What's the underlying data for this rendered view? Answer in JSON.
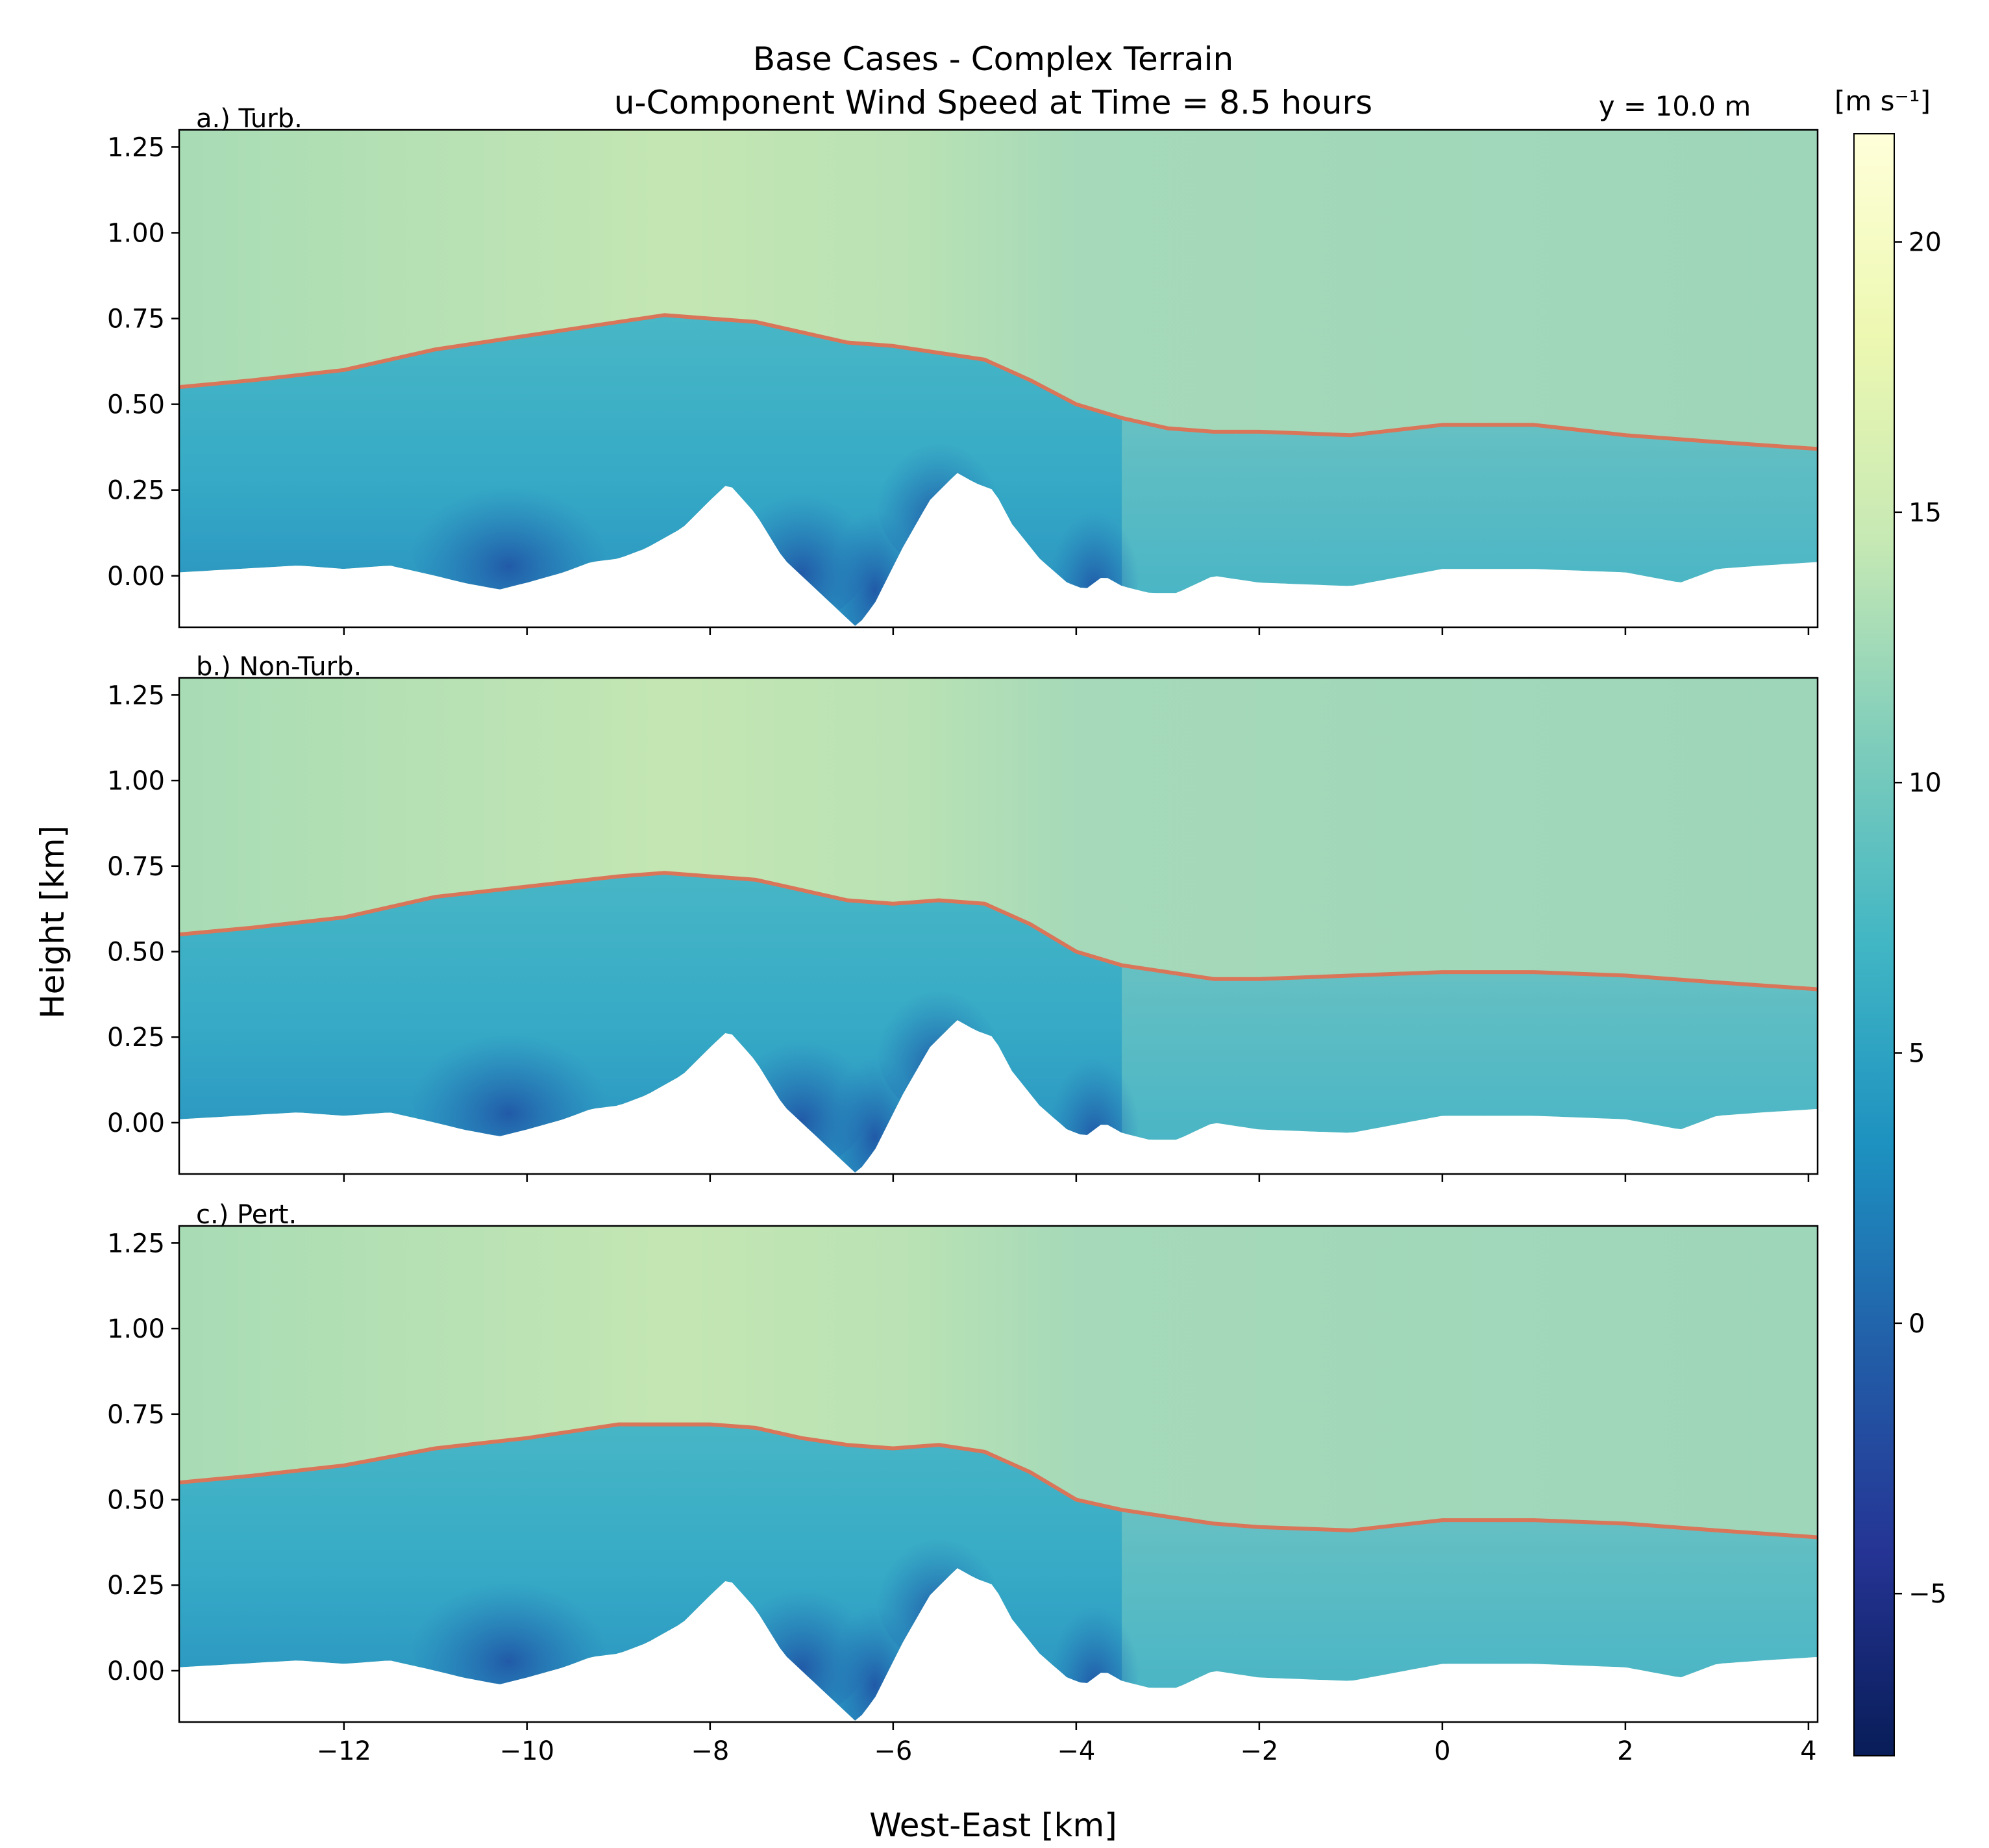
{
  "chart_data": {
    "type": "heatmap",
    "title": [
      "Base Cases - Complex Terrain",
      "u-Component Wind Speed at Time = 8.5 hours"
    ],
    "annotation": "y = 10.0 m",
    "xlabel": "West-East [km]",
    "ylabel": "Height [km]",
    "xlim": [
      -13.8,
      4.1
    ],
    "ylim": [
      -0.15,
      1.3
    ],
    "xticks": [
      -12,
      -10,
      -8,
      -6,
      -4,
      -2,
      0,
      2,
      4
    ],
    "xtick_labels": [
      "−12",
      "−10",
      "−8",
      "−6",
      "−4",
      "−2",
      "0",
      "2",
      "4"
    ],
    "yticks": [
      0.0,
      0.25,
      0.5,
      0.75,
      1.0,
      1.25
    ],
    "ytick_labels": [
      "0.00",
      "0.25",
      "0.50",
      "0.75",
      "1.00",
      "1.25"
    ],
    "colorbar": {
      "label": "[m s⁻¹]",
      "range": [
        -8,
        22
      ],
      "ticks": [
        -5,
        0,
        5,
        10,
        15,
        20
      ],
      "tick_labels": [
        "−5",
        "0",
        "5",
        "10",
        "15",
        "20"
      ],
      "colormap": "YlGnBu_r"
    },
    "terrain": {
      "x": [
        -13.8,
        -12.5,
        -12.0,
        -11.5,
        -11.0,
        -10.7,
        -10.3,
        -10.0,
        -9.6,
        -9.3,
        -9.0,
        -8.7,
        -8.3,
        -8.0,
        -7.8,
        -7.5,
        -7.2,
        -7.0,
        -6.8,
        -6.6,
        -6.4,
        -6.2,
        -5.9,
        -5.6,
        -5.3,
        -5.1,
        -4.9,
        -4.7,
        -4.4,
        -4.1,
        -3.9,
        -3.7,
        -3.5,
        -3.2,
        -2.9,
        -2.5,
        -2.0,
        -1.0,
        0.0,
        1.0,
        2.0,
        2.6,
        3.0,
        3.5,
        4.1
      ],
      "y": [
        0.01,
        0.03,
        0.02,
        0.03,
        0.0,
        -0.02,
        -0.04,
        -0.02,
        0.01,
        0.04,
        0.05,
        0.08,
        0.14,
        0.22,
        0.27,
        0.18,
        0.05,
        0.0,
        -0.05,
        -0.1,
        -0.15,
        -0.08,
        0.08,
        0.22,
        0.3,
        0.27,
        0.25,
        0.15,
        0.05,
        -0.02,
        -0.04,
        0.0,
        -0.03,
        -0.05,
        -0.05,
        0.0,
        -0.02,
        -0.03,
        0.02,
        0.02,
        0.01,
        -0.02,
        0.02,
        0.03,
        0.04
      ]
    },
    "series": [
      {
        "name": "a.) Turb.",
        "bl_height_x": [
          -13.8,
          -13.0,
          -12.0,
          -11.0,
          -10.0,
          -9.0,
          -8.5,
          -8.0,
          -7.5,
          -7.0,
          -6.5,
          -6.0,
          -5.5,
          -5.0,
          -4.5,
          -4.0,
          -3.5,
          -3.0,
          -2.5,
          -2.0,
          -1.0,
          0.0,
          1.0,
          2.0,
          3.0,
          4.1
        ],
        "bl_height_y": [
          0.55,
          0.57,
          0.6,
          0.66,
          0.7,
          0.74,
          0.76,
          0.75,
          0.74,
          0.71,
          0.68,
          0.67,
          0.65,
          0.63,
          0.57,
          0.5,
          0.46,
          0.43,
          0.42,
          0.42,
          0.41,
          0.44,
          0.44,
          0.41,
          0.39,
          0.37
        ]
      },
      {
        "name": "b.) Non-Turb.",
        "bl_height_x": [
          -13.8,
          -13.0,
          -12.0,
          -11.0,
          -10.0,
          -9.0,
          -8.5,
          -8.0,
          -7.5,
          -7.0,
          -6.5,
          -6.0,
          -5.5,
          -5.0,
          -4.5,
          -4.0,
          -3.5,
          -3.0,
          -2.5,
          -2.0,
          -1.0,
          0.0,
          1.0,
          2.0,
          3.0,
          4.1
        ],
        "bl_height_y": [
          0.55,
          0.57,
          0.6,
          0.66,
          0.69,
          0.72,
          0.73,
          0.72,
          0.71,
          0.68,
          0.65,
          0.64,
          0.65,
          0.64,
          0.58,
          0.5,
          0.46,
          0.44,
          0.42,
          0.42,
          0.43,
          0.44,
          0.44,
          0.43,
          0.41,
          0.39
        ]
      },
      {
        "name": "c.) Pert.",
        "bl_height_x": [
          -13.8,
          -13.0,
          -12.0,
          -11.0,
          -10.0,
          -9.0,
          -8.5,
          -8.0,
          -7.5,
          -7.0,
          -6.5,
          -6.0,
          -5.5,
          -5.0,
          -4.5,
          -4.0,
          -3.5,
          -3.0,
          -2.5,
          -2.0,
          -1.0,
          0.0,
          1.0,
          2.0,
          3.0,
          4.1
        ],
        "bl_height_y": [
          0.55,
          0.57,
          0.6,
          0.65,
          0.68,
          0.72,
          0.72,
          0.72,
          0.71,
          0.68,
          0.66,
          0.65,
          0.66,
          0.64,
          0.58,
          0.5,
          0.47,
          0.45,
          0.43,
          0.42,
          0.41,
          0.44,
          0.44,
          0.43,
          0.41,
          0.39
        ]
      }
    ]
  },
  "style": {
    "bl_line_color": "#d9765a",
    "colormap_stops": [
      "#081d58",
      "#253494",
      "#225ea8",
      "#1d91c0",
      "#41b6c4",
      "#7fcdbb",
      "#c7e9b4",
      "#edf8b1",
      "#ffffd9"
    ]
  }
}
